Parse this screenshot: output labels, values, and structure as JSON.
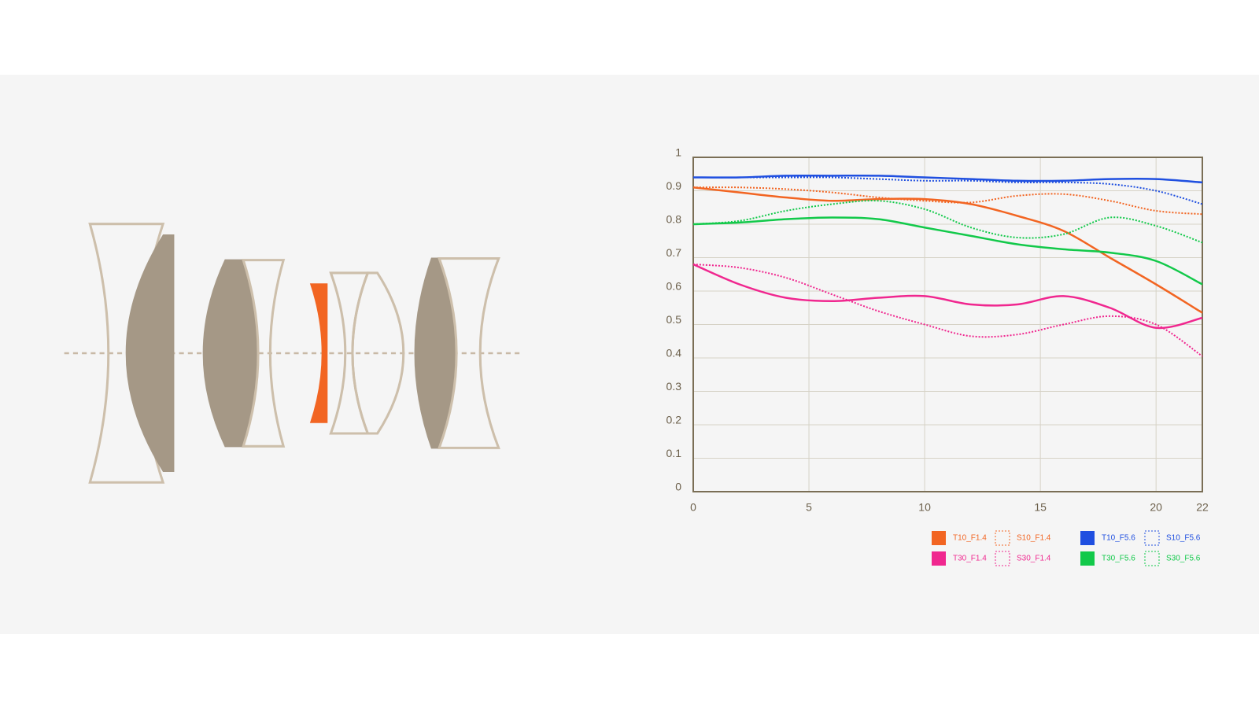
{
  "chart_data": {
    "type": "line",
    "x": [
      0,
      2,
      4,
      6,
      8,
      10,
      12,
      14,
      16,
      18,
      20,
      22
    ],
    "xlim": [
      0,
      22
    ],
    "xticks": [
      0,
      5,
      10,
      15,
      20,
      22
    ],
    "ylim": [
      0,
      1
    ],
    "yticks": [
      0,
      0.1,
      0.2,
      0.3,
      0.4,
      0.5,
      0.6,
      0.7,
      0.8,
      0.9,
      1
    ],
    "grid": true,
    "legend": "bottom-right",
    "series": [
      {
        "name": "T10_F1.4",
        "color": "#f26522",
        "style": "solid",
        "values": [
          0.91,
          0.895,
          0.88,
          0.87,
          0.875,
          0.875,
          0.86,
          0.825,
          0.78,
          0.7,
          0.62,
          0.535
        ]
      },
      {
        "name": "S10_F1.4",
        "color": "#f26522",
        "style": "dotted",
        "values": [
          0.91,
          0.91,
          0.905,
          0.895,
          0.88,
          0.87,
          0.865,
          0.885,
          0.89,
          0.87,
          0.84,
          0.83
        ]
      },
      {
        "name": "T10_F5.6",
        "color": "#1f4fe0",
        "style": "solid",
        "values": [
          0.94,
          0.94,
          0.945,
          0.945,
          0.945,
          0.94,
          0.935,
          0.93,
          0.93,
          0.935,
          0.935,
          0.925
        ]
      },
      {
        "name": "S10_F5.6",
        "color": "#1f4fe0",
        "style": "dotted",
        "values": [
          0.94,
          0.94,
          0.94,
          0.94,
          0.935,
          0.93,
          0.93,
          0.925,
          0.925,
          0.92,
          0.9,
          0.86
        ]
      },
      {
        "name": "T30_F1.4",
        "color": "#f0278f",
        "style": "solid",
        "values": [
          0.68,
          0.62,
          0.58,
          0.57,
          0.58,
          0.585,
          0.56,
          0.56,
          0.585,
          0.55,
          0.49,
          0.52
        ]
      },
      {
        "name": "S30_F1.4",
        "color": "#f0278f",
        "style": "dotted",
        "values": [
          0.68,
          0.67,
          0.64,
          0.59,
          0.54,
          0.5,
          0.465,
          0.47,
          0.5,
          0.525,
          0.5,
          0.405
        ]
      },
      {
        "name": "T30_F5.6",
        "color": "#12c94a",
        "style": "solid",
        "values": [
          0.8,
          0.805,
          0.815,
          0.82,
          0.815,
          0.79,
          0.765,
          0.74,
          0.725,
          0.715,
          0.69,
          0.62
        ]
      },
      {
        "name": "S30_F5.6",
        "color": "#12c94a",
        "style": "dotted",
        "values": [
          0.8,
          0.81,
          0.84,
          0.86,
          0.87,
          0.845,
          0.79,
          0.76,
          0.77,
          0.82,
          0.795,
          0.745
        ]
      }
    ]
  }
}
